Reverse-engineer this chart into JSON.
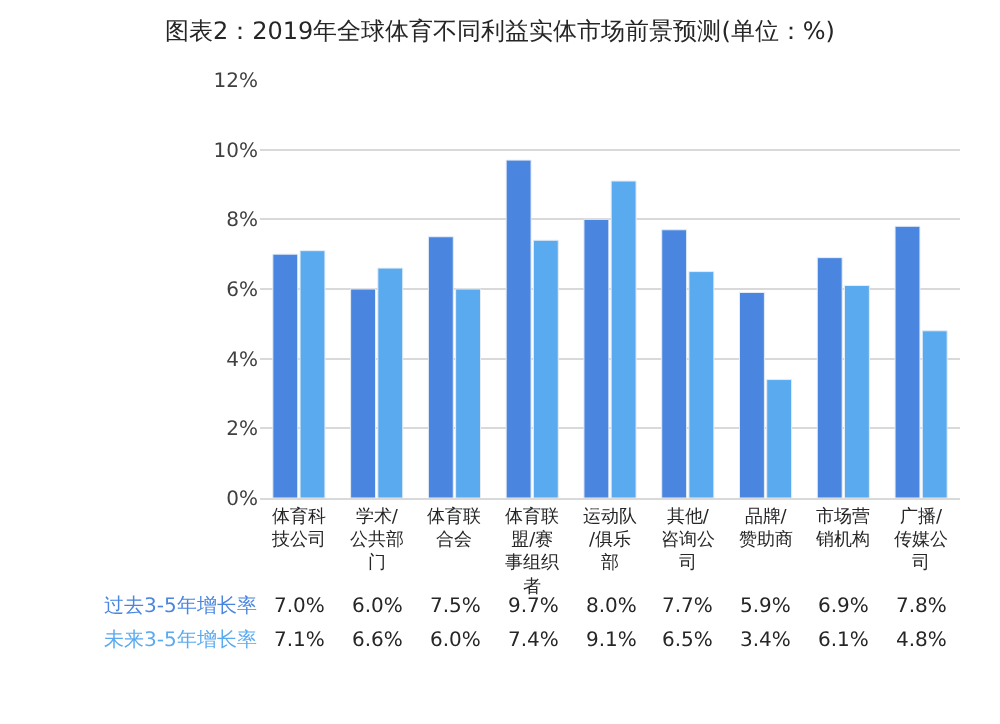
{
  "chart_data": {
    "type": "bar",
    "title": "图表2：2019年全球体育不同利益实体市场前景预测(单位：%)",
    "categories": [
      "体育科技公司",
      "学术/公共部门",
      "体育联合会",
      "体育联盟/赛事组织者",
      "运动队/俱乐部",
      "其他/咨询公司",
      "品牌/赞助商",
      "市场营销机构",
      "广播/传媒公司"
    ],
    "series": [
      {
        "name": "过去3-5年增长率",
        "color": "#4a86e0",
        "values": [
          7.0,
          6.0,
          7.5,
          9.7,
          8.0,
          7.7,
          5.9,
          6.9,
          7.8
        ],
        "value_labels": [
          "7.0%",
          "6.0%",
          "7.5%",
          "9.7%",
          "8.0%",
          "7.7%",
          "5.9%",
          "6.9%",
          "7.8%"
        ]
      },
      {
        "name": "未来3-5年增长率",
        "color": "#5aaaf0",
        "values": [
          7.1,
          6.6,
          6.0,
          7.4,
          9.1,
          6.5,
          3.4,
          6.1,
          4.8
        ],
        "value_labels": [
          "7.1%",
          "6.6%",
          "6.0%",
          "7.4%",
          "9.1%",
          "6.5%",
          "3.4%",
          "6.1%",
          "4.8%"
        ]
      }
    ],
    "ylim": [
      0,
      12
    ],
    "yticks": [
      {
        "value": 0,
        "label": "0%"
      },
      {
        "value": 2,
        "label": "2%"
      },
      {
        "value": 4,
        "label": "4%"
      },
      {
        "value": 6,
        "label": "6%"
      },
      {
        "value": 8,
        "label": "8%"
      },
      {
        "value": 10,
        "label": "10%"
      },
      {
        "value": 12,
        "label": "12%"
      }
    ],
    "grid": "y",
    "legend": false
  }
}
